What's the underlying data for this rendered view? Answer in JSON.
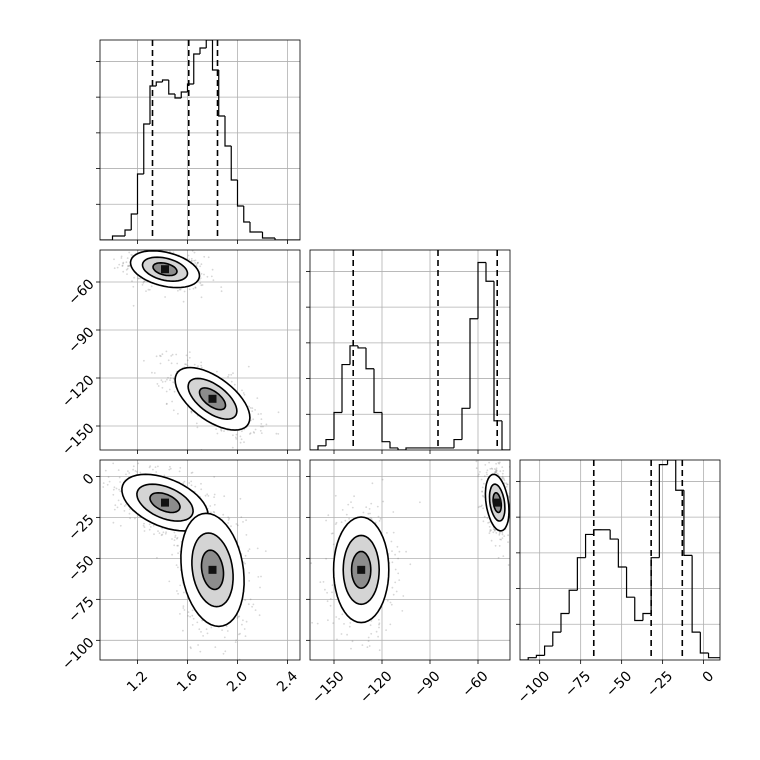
{
  "chart_data": {
    "type": "corner",
    "title": "",
    "grid": true,
    "parameters": [
      {
        "range": [
          0.9,
          2.5
        ],
        "ticks": [
          1.2,
          1.6,
          2.0,
          2.4
        ],
        "tick_labels": [
          "1.2",
          "1.6",
          "2.0",
          "2.4"
        ],
        "quantiles": [
          1.32,
          1.61,
          1.84
        ]
      },
      {
        "range": [
          -165,
          -40
        ],
        "ticks": [
          -150,
          -120,
          -90,
          -60
        ],
        "tick_labels": [
          "−150",
          "−120",
          "−90",
          "−60"
        ],
        "quantiles": [
          -138,
          -85,
          -48
        ]
      },
      {
        "range": [
          -112,
          10
        ],
        "ticks": [
          -100,
          -75,
          -50,
          -25,
          0
        ],
        "tick_labels": [
          "−100",
          "−75",
          "−50",
          "−25",
          "0"
        ],
        "quantiles": [
          -67,
          -32,
          -13
        ]
      }
    ],
    "histograms": [
      {
        "param": 0,
        "bin_edges": [
          0.9,
          1.0,
          1.1,
          1.15,
          1.2,
          1.25,
          1.3,
          1.35,
          1.4,
          1.45,
          1.5,
          1.55,
          1.6,
          1.65,
          1.7,
          1.75,
          1.8,
          1.85,
          1.9,
          1.95,
          2.0,
          2.05,
          2.1,
          2.2,
          2.3,
          2.5
        ],
        "counts": [
          0,
          0.02,
          0.05,
          0.13,
          0.33,
          0.58,
          0.77,
          0.79,
          0.8,
          0.73,
          0.71,
          0.74,
          0.78,
          0.93,
          0.96,
          1.0,
          0.85,
          0.62,
          0.47,
          0.3,
          0.17,
          0.09,
          0.04,
          0.01,
          0
        ]
      },
      {
        "param": 1,
        "bin_edges": [
          -165,
          -160,
          -155,
          -150,
          -145,
          -140,
          -135,
          -130,
          -125,
          -120,
          -115,
          -110,
          -105,
          -75,
          -70,
          -65,
          -60,
          -55,
          -50,
          -45,
          -40
        ],
        "counts": [
          0,
          0.02,
          0.05,
          0.18,
          0.41,
          0.5,
          0.49,
          0.39,
          0.18,
          0.04,
          0.01,
          0,
          0.01,
          0.05,
          0.2,
          0.63,
          0.9,
          0.81,
          0.14,
          0
        ],
        "max_count": 0.96
      },
      {
        "param": 2,
        "bin_edges": [
          -112,
          -107,
          -102,
          -97,
          -92,
          -87,
          -82,
          -77,
          -72,
          -67,
          -62,
          -57,
          -52,
          -47,
          -42,
          -37,
          -32,
          -27,
          -22,
          -17,
          -12,
          -7,
          -2,
          3,
          10
        ],
        "counts": [
          0,
          0.01,
          0.02,
          0.06,
          0.12,
          0.2,
          0.3,
          0.44,
          0.54,
          0.56,
          0.56,
          0.52,
          0.4,
          0.27,
          0.17,
          0.2,
          0.44,
          0.84,
          0.86,
          0.73,
          0.45,
          0.12,
          0.03,
          0.01
        ]
      }
    ],
    "panels_2d": [
      {
        "x_param": 0,
        "y_param": 1,
        "clusters": [
          {
            "center": [
              1.42,
              -52
            ],
            "sx": 0.12,
            "sy": 5,
            "rho": -0.35,
            "weight": 0.5
          },
          {
            "center": [
              1.8,
              -133
            ],
            "sx": 0.13,
            "sy": 8.5,
            "rho": -0.6,
            "weight": 0.5
          }
        ]
      },
      {
        "x_param": 0,
        "y_param": 2,
        "clusters": [
          {
            "center": [
              1.42,
              -16
            ],
            "sx": 0.15,
            "sy": 7.5,
            "rho": -0.45,
            "weight": 0.5
          },
          {
            "center": [
              1.8,
              -57
            ],
            "sx": 0.11,
            "sy": 15,
            "rho": -0.2,
            "weight": 0.5
          }
        ]
      },
      {
        "x_param": 1,
        "y_param": 2,
        "clusters": [
          {
            "center": [
              -133,
              -57
            ],
            "sx": 7.5,
            "sy": 14,
            "rho": 0,
            "weight": 0.5
          },
          {
            "center": [
              -48,
              -16
            ],
            "sx": 3.2,
            "sy": 7.5,
            "rho": -0.3,
            "weight": 0.5
          }
        ]
      }
    ]
  }
}
